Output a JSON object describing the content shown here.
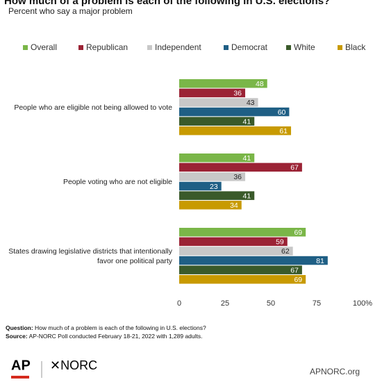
{
  "chart_data": {
    "type": "hbar",
    "title": "How much of a problem is each of the following in U.S. elections?",
    "subtitle": "Percent who say a major problem",
    "categories": [
      "People who are eligible not being allowed to vote",
      "People voting who are not eligible",
      "States drawing legislative districts that intentionally favor one political party"
    ],
    "series": [
      {
        "name": "Overall",
        "color": "#7ab648",
        "values": [
          48,
          41,
          69
        ]
      },
      {
        "name": "Republican",
        "color": "#9b2335",
        "values": [
          36,
          67,
          59
        ]
      },
      {
        "name": "Independent",
        "color": "#c8c8c8",
        "values": [
          43,
          36,
          62
        ]
      },
      {
        "name": "Democrat",
        "color": "#1f5f85",
        "values": [
          60,
          23,
          81
        ]
      },
      {
        "name": "White",
        "color": "#3a5a2a",
        "values": [
          41,
          41,
          67
        ]
      },
      {
        "name": "Black",
        "color": "#c89a00",
        "values": [
          61,
          34,
          69
        ]
      }
    ],
    "xlim": [
      0,
      100
    ],
    "xticks": [
      0,
      25,
      50,
      75,
      {
        "value": 100,
        "label": "100%"
      }
    ],
    "legend": "top",
    "question_label": "Question:",
    "question": "How much of a problem is each of the following in U.S. elections?",
    "source_label": "Source:",
    "source": "AP-NORC Poll conducted February 18-21, 2022 with 1,289 adults."
  },
  "footer": {
    "logo_ap": "AP",
    "logo_norc": "NORC",
    "site": "APNORC.org"
  }
}
